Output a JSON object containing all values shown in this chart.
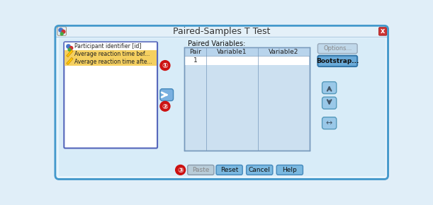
{
  "title": "Paired-Samples T Test",
  "list_box_items": [
    "Participant identifier [id]",
    "Average reaction time bef...",
    "Average reaction time afte..."
  ],
  "table_header": [
    "Pair",
    "Variable1",
    "Variable2"
  ],
  "buttons_bottom": [
    "Paste",
    "Reset",
    "Cancel",
    "Help"
  ],
  "outer_bg": "#cce0f0",
  "dialog_bg": "#d8ecf8",
  "dialog_border": "#5599cc",
  "titlebar_bg": "#e8f4fc",
  "titlebar_edge": "#a0c8e0",
  "listbox_bg": "#ffffff",
  "listbox_border": "#5566bb",
  "item0_bg": "#ffffff",
  "item12_bg": "#f5d060",
  "table_bg": "#cce0f0",
  "table_header_bg": "#b8d4ec",
  "table_row_bg": "#ffffff",
  "btn_blue": "#7ab8e0",
  "btn_blue_dark": "#5a9cd4",
  "btn_blue_border": "#4488bb",
  "btn_gray": "#b8ccd8",
  "btn_gray_border": "#8899aa",
  "close_btn_bg": "#cc3333",
  "circle_bg": "#cc1111",
  "circle_border": "#ffffff",
  "arrow_btn_bg": "#9ac8e8",
  "arrow_btn_border": "#5599bb",
  "transfer_btn_bg": "#7ab0e0",
  "options_btn_bg": "#c0d8ea",
  "bootstrap_btn_bg": "#6aaad8"
}
